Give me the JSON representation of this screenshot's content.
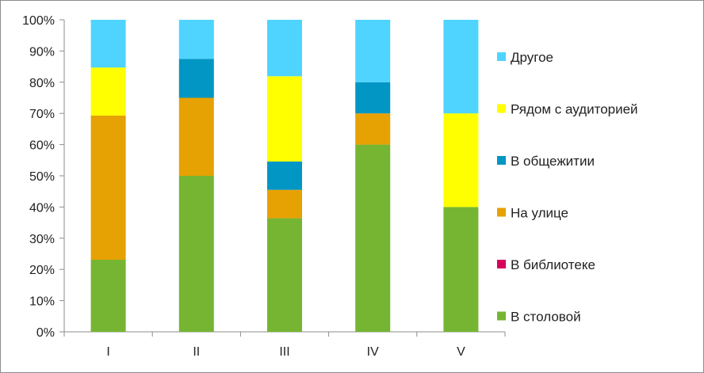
{
  "chart_data": {
    "type": "bar",
    "stacked": true,
    "normalized": true,
    "categories": [
      "I",
      "II",
      "III",
      "IV",
      "V"
    ],
    "ylim": [
      0,
      100
    ],
    "yticks": [
      0,
      10,
      20,
      30,
      40,
      50,
      60,
      70,
      80,
      90,
      100
    ],
    "ytick_labels": [
      "0%",
      "10%",
      "20%",
      "30%",
      "40%",
      "50%",
      "60%",
      "70%",
      "80%",
      "90%",
      "100%"
    ],
    "grid": false,
    "legend_position": "right",
    "series": [
      {
        "name": "В столовой",
        "color": "#76b531",
        "values": [
          23.1,
          50,
          36.4,
          60,
          40
        ]
      },
      {
        "name": "В библиотеке",
        "color": "#d6005d",
        "values": [
          0,
          0,
          0,
          0,
          0
        ]
      },
      {
        "name": "На улице",
        "color": "#e6a102",
        "values": [
          46.2,
          25,
          9.1,
          10,
          0
        ]
      },
      {
        "name": "В общежитии",
        "color": "#0196c3",
        "values": [
          0,
          12.5,
          9.1,
          10,
          0
        ]
      },
      {
        "name": "Рядом с аудиторией",
        "color": "#ffff00",
        "values": [
          15.4,
          0,
          27.3,
          0,
          30
        ]
      },
      {
        "name": "Другое",
        "color": "#4fd4ff",
        "values": [
          15.3,
          12.5,
          18.1,
          20,
          30
        ]
      }
    ],
    "legend_order": [
      5,
      4,
      3,
      2,
      1,
      0
    ]
  }
}
